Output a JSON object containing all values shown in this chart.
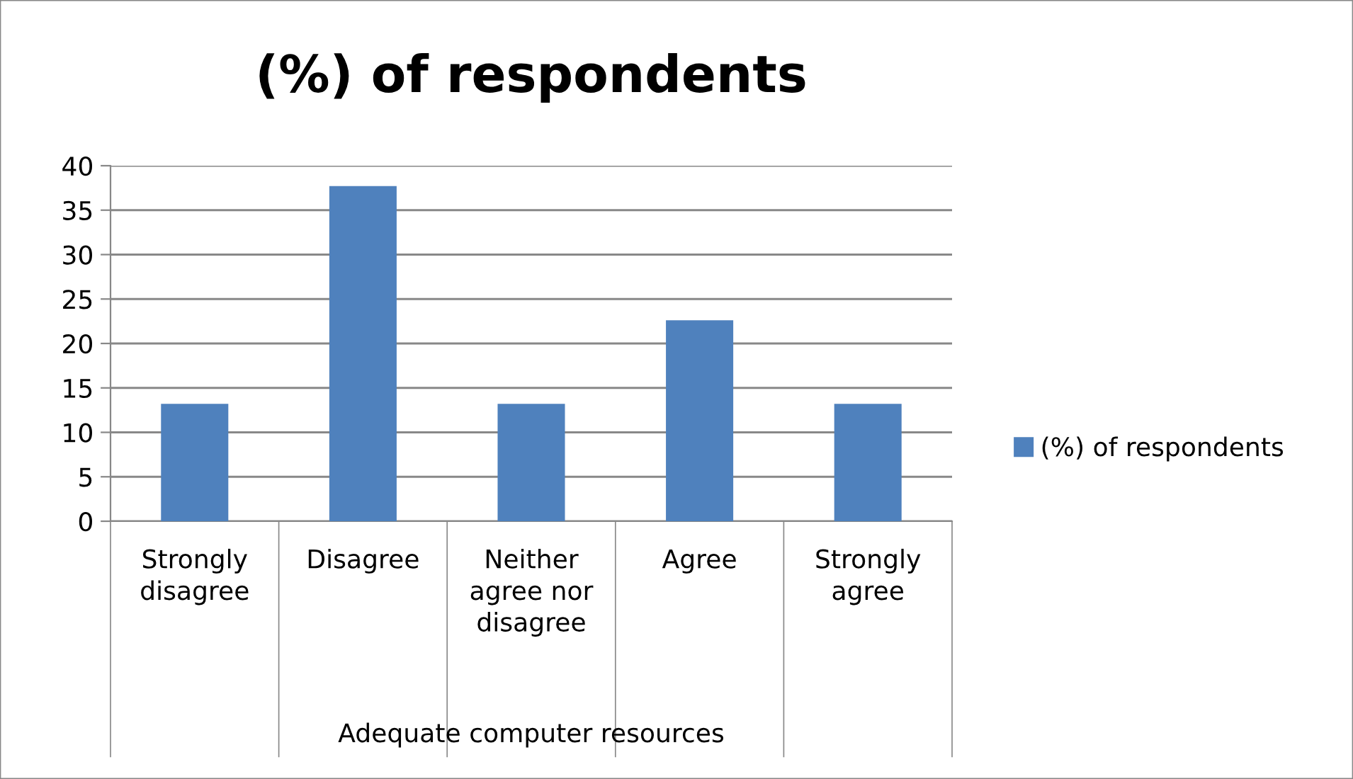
{
  "chart_data": {
    "type": "bar",
    "title": "(%) of respondents",
    "categories": [
      "Strongly\ndisagree",
      "Disagree",
      "Neither\nagree nor\ndisagree",
      "Agree",
      "Strongly\nagree"
    ],
    "series": [
      {
        "name": "(%) of respondents",
        "color": "#4f81bd",
        "values": [
          13.2,
          37.7,
          13.2,
          22.6,
          13.2
        ]
      }
    ],
    "xlabel": "Adequate computer resources",
    "ylim": [
      0,
      40
    ],
    "yticks": [
      0,
      5,
      10,
      15,
      20,
      25,
      30,
      35,
      40
    ],
    "grid": "y",
    "legend": "right"
  }
}
